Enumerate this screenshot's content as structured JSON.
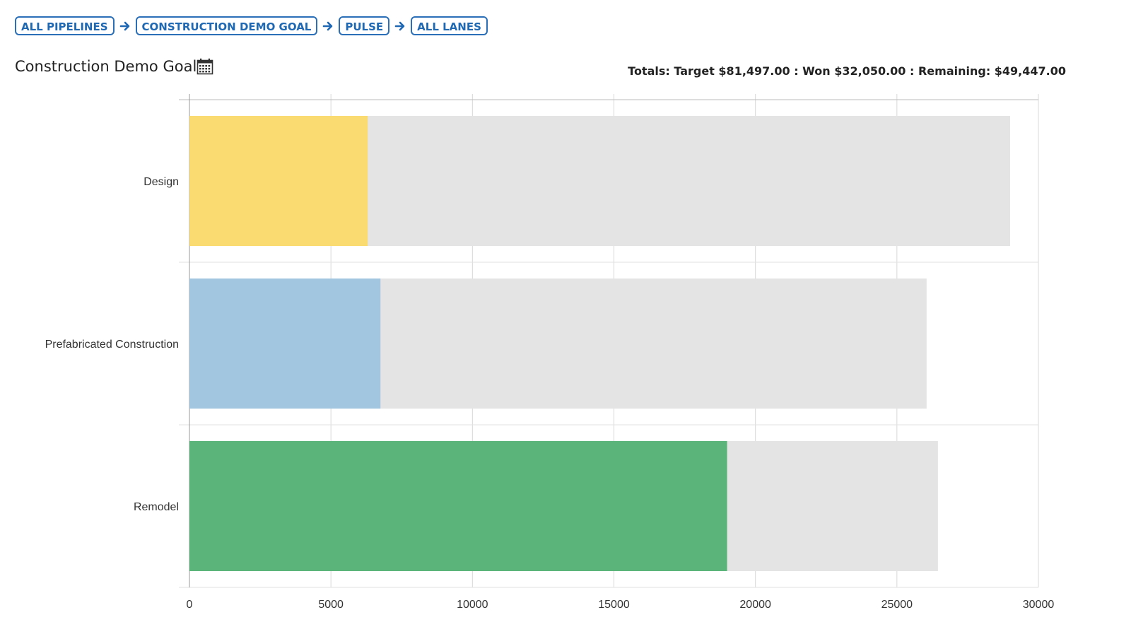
{
  "breadcrumb": {
    "items": [
      {
        "label": "ALL PIPELINES"
      },
      {
        "label": "CONSTRUCTION DEMO GOAL"
      },
      {
        "label": "PULSE"
      },
      {
        "label": "ALL LANES"
      }
    ]
  },
  "header": {
    "title": "Construction Demo Goal",
    "totals": "Totals: Target $81,497.00 : Won $32,050.00 : Remaining: $49,447.00"
  },
  "icons": {
    "calendar": "calendar-icon",
    "separator": "arrow-right-icon"
  },
  "colors": {
    "accent": "#1f68b3",
    "target_bar": "#e4e4e4",
    "grid": "#d8d8d8"
  },
  "chart_data": {
    "type": "bar",
    "orientation": "horizontal",
    "categories": [
      "Design",
      "Prefabricated Construction",
      "Remodel"
    ],
    "series": [
      {
        "values": [
          29000,
          26050,
          26450
        ],
        "color": "#e4e4e4"
      },
      {
        "values": [
          6300,
          6750,
          19000
        ],
        "colors": [
          "#f9db72",
          "#a2c6e0",
          "#5bb47a"
        ]
      }
    ],
    "xlim": [
      0,
      30000
    ],
    "xticks": [
      0,
      5000,
      10000,
      15000,
      20000,
      25000,
      30000
    ],
    "grid": true,
    "legend": "none"
  }
}
